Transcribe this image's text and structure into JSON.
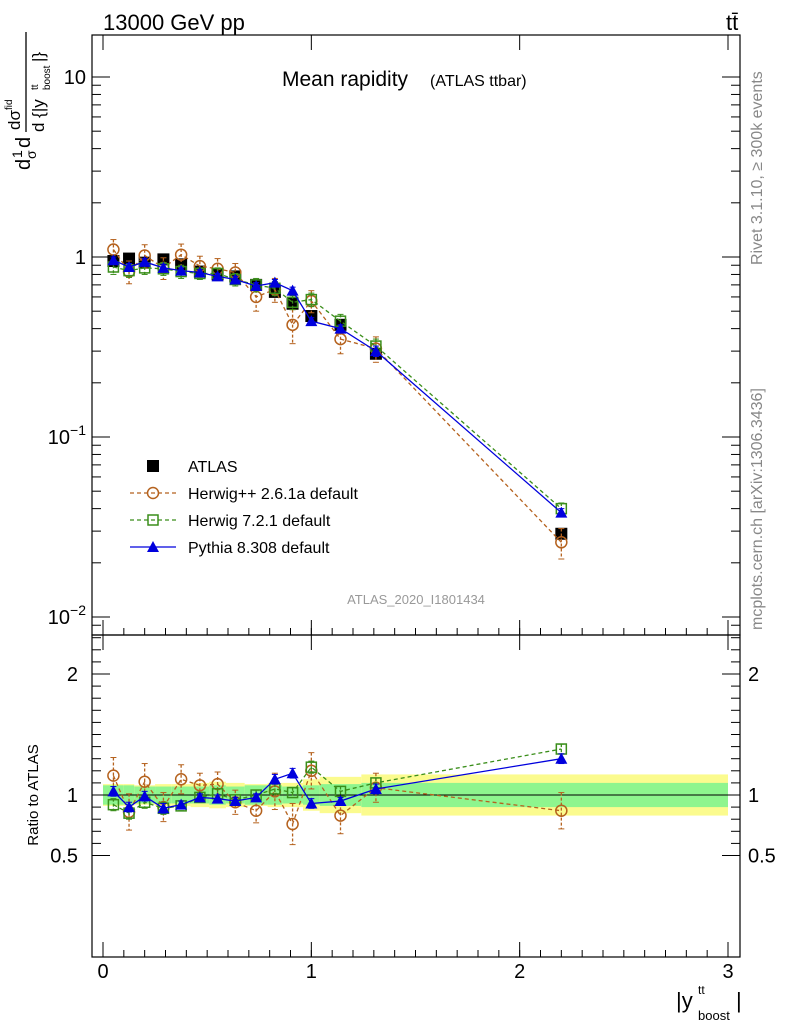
{
  "header": {
    "energy_label": "13000 GeV pp",
    "process_label": "tt̄"
  },
  "side_labels": {
    "rivet": "Rivet 3.1.10, ≥ 300k events",
    "mcplots": "mcplots.cern.ch [arXiv:1306.3436]"
  },
  "watermark": "ATLAS_2020_I1801434",
  "chart_data": [
    {
      "type": "scatter",
      "panel": "main",
      "title": "Mean rapidity",
      "subtitle": "(ATLAS ttbar)",
      "ylabel": "1/σ dσ^{fid}/d{|y^{tt}_{boost}|}",
      "yscale": "log",
      "ylim": [
        0.009,
        20
      ],
      "xlim": [
        -0.05,
        3.05
      ],
      "legend_position": "lower-left",
      "x": [
        0.05,
        0.125,
        0.2,
        0.29,
        0.375,
        0.465,
        0.55,
        0.635,
        0.735,
        0.825,
        0.91,
        1.0,
        1.14,
        1.31,
        2.2
      ],
      "series": [
        {
          "name": "ATLAS",
          "color": "#000000",
          "marker": "square",
          "values": [
            0.95,
            0.98,
            0.93,
            0.97,
            0.91,
            0.83,
            0.8,
            0.78,
            0.7,
            0.64,
            0.55,
            0.47,
            0.42,
            0.29,
            0.029
          ]
        },
        {
          "name": "Herwig++ 2.6.1a default",
          "color": "#b5621e",
          "marker": "circle",
          "line": "dashed",
          "values": [
            1.1,
            0.83,
            1.02,
            0.87,
            1.03,
            0.89,
            0.86,
            0.82,
            0.6,
            0.66,
            0.42,
            0.57,
            0.35,
            0.31,
            0.026
          ],
          "errors": [
            0.15,
            0.12,
            0.15,
            0.12,
            0.15,
            0.12,
            0.12,
            0.1,
            0.1,
            0.1,
            0.09,
            0.08,
            0.06,
            0.05,
            0.005
          ]
        },
        {
          "name": "Herwig 7.2.1 default",
          "color": "#3a8e1a",
          "marker": "open-square",
          "line": "dashed",
          "values": [
            0.88,
            0.84,
            0.87,
            0.86,
            0.83,
            0.81,
            0.81,
            0.75,
            0.7,
            0.67,
            0.56,
            0.58,
            0.44,
            0.32,
            0.04
          ],
          "errors": [
            0.08,
            0.07,
            0.07,
            0.07,
            0.07,
            0.06,
            0.06,
            0.06,
            0.06,
            0.06,
            0.05,
            0.05,
            0.04,
            0.03,
            0.003
          ]
        },
        {
          "name": "Pythia 8.308 default",
          "color": "#0000dd",
          "marker": "triangle",
          "line": "solid",
          "values": [
            0.96,
            0.88,
            0.94,
            0.87,
            0.84,
            0.82,
            0.78,
            0.75,
            0.69,
            0.72,
            0.65,
            0.44,
            0.4,
            0.3,
            0.038
          ],
          "errors": [
            0.04,
            0.04,
            0.04,
            0.04,
            0.03,
            0.03,
            0.03,
            0.03,
            0.03,
            0.03,
            0.03,
            0.02,
            0.02,
            0.02,
            0.002
          ]
        }
      ],
      "ytick_labels": [
        "10",
        "1",
        "10^{-1}",
        "10^{-2}"
      ]
    },
    {
      "type": "scatter",
      "panel": "ratio",
      "ylabel": "Ratio to ATLAS",
      "xlabel": "|y^{tt}_{boost}|",
      "ylim": [
        0.4,
        2.4
      ],
      "xlim": [
        -0.05,
        3.05
      ],
      "xtick_labels": [
        "0",
        "1",
        "2",
        "3"
      ],
      "ytick_labels": [
        "0.5",
        "1",
        "2"
      ],
      "x": [
        0.05,
        0.125,
        0.2,
        0.29,
        0.375,
        0.465,
        0.55,
        0.635,
        0.735,
        0.825,
        0.91,
        1.0,
        1.14,
        1.31,
        2.2
      ],
      "bands": {
        "edges": [
          0.0,
          0.1,
          0.15,
          0.25,
          0.33,
          0.42,
          0.51,
          0.59,
          0.68,
          0.79,
          0.86,
          0.96,
          1.04,
          1.24,
          1.38,
          3.0
        ],
        "inner": [
          0.08,
          0.08,
          0.07,
          0.07,
          0.07,
          0.07,
          0.08,
          0.07,
          0.08,
          0.08,
          0.07,
          0.08,
          0.09,
          0.1,
          0.1
        ],
        "outer": [
          0.09,
          0.09,
          0.08,
          0.09,
          0.09,
          0.1,
          0.11,
          0.1,
          0.09,
          0.1,
          0.1,
          0.13,
          0.15,
          0.17,
          0.17
        ],
        "inner_color": "#8ef58e",
        "outer_color": "#fbfb8e"
      },
      "series": [
        {
          "name": "Herwig++ 2.6.1a default",
          "color": "#b5621e",
          "marker": "circle",
          "line": "dashed",
          "values": [
            1.16,
            0.86,
            1.11,
            0.9,
            1.13,
            1.08,
            1.09,
            0.94,
            0.87,
            1.03,
            0.76,
            1.2,
            0.83,
            1.06,
            0.87
          ],
          "errors": [
            0.15,
            0.15,
            0.15,
            0.12,
            0.12,
            0.1,
            0.1,
            0.1,
            0.1,
            0.15,
            0.17,
            0.15,
            0.15,
            0.12,
            0.15
          ]
        },
        {
          "name": "Herwig 7.2.1 default",
          "color": "#3a8e1a",
          "marker": "open-square",
          "line": "dashed",
          "values": [
            0.92,
            0.85,
            0.94,
            0.89,
            0.91,
            0.98,
            1.01,
            0.96,
            1.0,
            1.05,
            1.02,
            1.23,
            1.03,
            1.1,
            1.38
          ],
          "errors": [
            0.05,
            0.05,
            0.05,
            0.05,
            0.04,
            0.04,
            0.04,
            0.04,
            0.04,
            0.04,
            0.04,
            0.05,
            0.04,
            0.04,
            0.04
          ]
        },
        {
          "name": "Pythia 8.308 default",
          "color": "#0000dd",
          "marker": "triangle",
          "line": "solid",
          "values": [
            1.03,
            0.9,
            0.99,
            0.89,
            0.92,
            0.98,
            0.97,
            0.95,
            0.98,
            1.13,
            1.18,
            0.93,
            0.95,
            1.05,
            1.3
          ],
          "errors": [
            0.04,
            0.04,
            0.04,
            0.04,
            0.03,
            0.03,
            0.03,
            0.03,
            0.03,
            0.04,
            0.04,
            0.04,
            0.03,
            0.04,
            0.04
          ]
        }
      ]
    }
  ]
}
